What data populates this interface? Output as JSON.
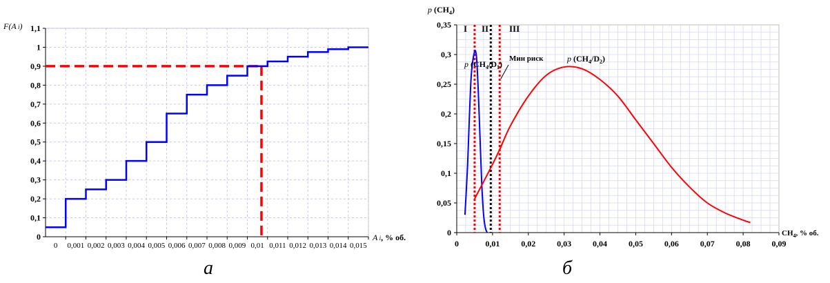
{
  "captions": {
    "a": "а",
    "b": "б"
  },
  "chart_data": [
    {
      "type": "line",
      "panel": "а",
      "step": true,
      "ylabel": "F(A i)",
      "xlabel": "A i , % об.",
      "xlim": [
        -0.0005,
        0.0155
      ],
      "ylim": [
        0,
        1.1
      ],
      "grid": true,
      "y_ticks": [
        "0",
        "0,1",
        "0,2",
        "0,3",
        "0,4",
        "0,5",
        "0,6",
        "0,7",
        "0,8",
        "0,9",
        "1",
        "1,1"
      ],
      "y_tick_values": [
        0,
        0.1,
        0.2,
        0.3,
        0.4,
        0.5,
        0.6,
        0.7,
        0.8,
        0.9,
        1.0,
        1.1
      ],
      "x_ticks": [
        "0",
        "0,001",
        "0,002",
        "0,003",
        "0,004",
        "0,005",
        "0,006",
        "0,007",
        "0,008",
        "0,009",
        "0,01",
        "0,011",
        "0,012",
        "0,013",
        "0,014",
        "0,015"
      ],
      "x_tick_values": [
        0,
        0.001,
        0.002,
        0.003,
        0.004,
        0.005,
        0.006,
        0.007,
        0.008,
        0.009,
        0.01,
        0.011,
        0.012,
        0.013,
        0.014,
        0.015
      ],
      "series": [
        {
          "color": "#0000ff",
          "x": [
            -0.0005,
            0.0005,
            0.0015,
            0.0025,
            0.0035,
            0.0045,
            0.0055,
            0.0065,
            0.0075,
            0.0085,
            0.0095,
            0.0105,
            0.0115,
            0.0125,
            0.0135,
            0.0145,
            0.0155
          ],
          "y": [
            0.05,
            0.2,
            0.25,
            0.3,
            0.4,
            0.5,
            0.65,
            0.75,
            0.8,
            0.85,
            0.9,
            0.925,
            0.95,
            0.975,
            0.99,
            1.0,
            1.0
          ]
        }
      ],
      "reference": {
        "color": "#ff0000",
        "y": 0.9,
        "x": 0.0102
      }
    },
    {
      "type": "line",
      "panel": "б",
      "ylabel": "p (CH4)",
      "xlabel": "CH4, % об.",
      "xlim": [
        0,
        0.09
      ],
      "ylim": [
        0,
        0.35
      ],
      "grid": true,
      "y_ticks": [
        "0",
        "0,05",
        "0,1",
        "0,15",
        "0,2",
        "0,25",
        "0,3",
        "0,35"
      ],
      "y_tick_values": [
        0,
        0.05,
        0.1,
        0.15,
        0.2,
        0.25,
        0.3,
        0.35
      ],
      "x_ticks": [
        "0",
        "0,01",
        "0,02",
        "0,03",
        "0,04",
        "0,05",
        "0,06",
        "0,07",
        "0,08",
        "0,09"
      ],
      "x_tick_values": [
        0,
        0.01,
        0.02,
        0.03,
        0.04,
        0.05,
        0.06,
        0.07,
        0.08,
        0.09
      ],
      "zones": [
        "I",
        "II",
        "III"
      ],
      "vlines": [
        {
          "x": 0.005,
          "color": "#ff0000"
        },
        {
          "x": 0.0095,
          "color": "#000000"
        },
        {
          "x": 0.012,
          "color": "#ff0000"
        }
      ],
      "series": [
        {
          "label": "p (CH4/D1)",
          "color": "#0000ff",
          "x": [
            0.0023,
            0.003,
            0.0035,
            0.004,
            0.0045,
            0.005,
            0.0053,
            0.0056,
            0.006,
            0.0065,
            0.007,
            0.0075,
            0.008,
            0.0085
          ],
          "y": [
            0.03,
            0.11,
            0.19,
            0.26,
            0.29,
            0.305,
            0.305,
            0.29,
            0.24,
            0.16,
            0.08,
            0.03,
            0.008,
            0
          ]
        },
        {
          "label": "p (CH4/D2)",
          "color": "#ff0000",
          "x": [
            0.005,
            0.007,
            0.01,
            0.012,
            0.015,
            0.02,
            0.025,
            0.03,
            0.035,
            0.04,
            0.045,
            0.05,
            0.055,
            0.06,
            0.065,
            0.07,
            0.075,
            0.08,
            0.082
          ],
          "y": [
            0.057,
            0.08,
            0.115,
            0.14,
            0.18,
            0.23,
            0.265,
            0.279,
            0.276,
            0.258,
            0.23,
            0.19,
            0.15,
            0.11,
            0.077,
            0.05,
            0.033,
            0.021,
            0.017
          ]
        }
      ],
      "annotations": [
        "p (CH4/D1)",
        "Мин риск",
        "p (CH4/D2)"
      ]
    }
  ]
}
